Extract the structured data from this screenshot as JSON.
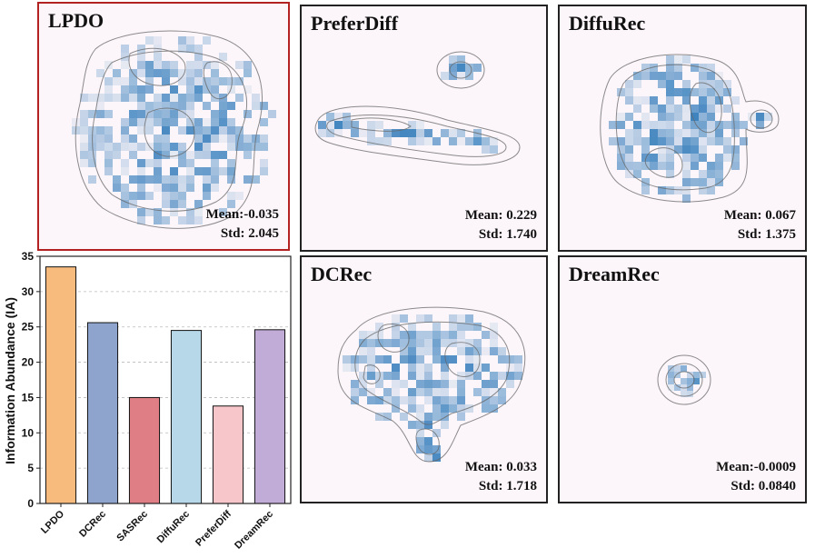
{
  "colors": {
    "cell": "#2171b5",
    "contour": "#666666",
    "highlight_border": "#b22222",
    "panel_bg": "#fcf6fa"
  },
  "panels": [
    {
      "key": "lpdo",
      "title": "LPDO",
      "mean_label": "Mean:",
      "mean": "-0.035",
      "std_label": "Std:",
      "std": "2.045",
      "highlight": true
    },
    {
      "key": "preferdiff",
      "title": "PreferDiff",
      "mean_label": "Mean:",
      "mean": "0.229",
      "std_label": "Std:",
      "std": "1.740",
      "highlight": false
    },
    {
      "key": "diffurec",
      "title": "DiffuRec",
      "mean_label": "Mean:",
      "mean": "0.067",
      "std_label": "Std:",
      "std": "1.375",
      "highlight": false
    },
    {
      "key": "dcrec",
      "title": "DCRec",
      "mean_label": "Mean:",
      "mean": "0.033",
      "std_label": "Std:",
      "std": "1.718",
      "highlight": false
    },
    {
      "key": "dreamrec",
      "title": "DreamRec",
      "mean_label": "Mean:",
      "mean": "-0.0009",
      "std_label": "Std:",
      "std": "0.0840",
      "highlight": false
    }
  ],
  "chart_data": {
    "type": "bar",
    "title": "",
    "xlabel": "",
    "ylabel": "Information Abundance (IA)",
    "categories": [
      "LPDO",
      "DCRec",
      "SASRec",
      "DiffuRec",
      "PreferDiff",
      "DreamRec"
    ],
    "values": [
      33.5,
      25.6,
      15.0,
      24.5,
      13.8,
      24.6
    ],
    "colors": [
      "#f7bb7e",
      "#8fa4cc",
      "#e07e85",
      "#b7d8e8",
      "#f7c6cb",
      "#c0acd6"
    ],
    "ylim": [
      0,
      35
    ],
    "yticks": [
      0,
      5,
      10,
      15,
      20,
      25,
      30,
      35
    ],
    "grid": true
  }
}
